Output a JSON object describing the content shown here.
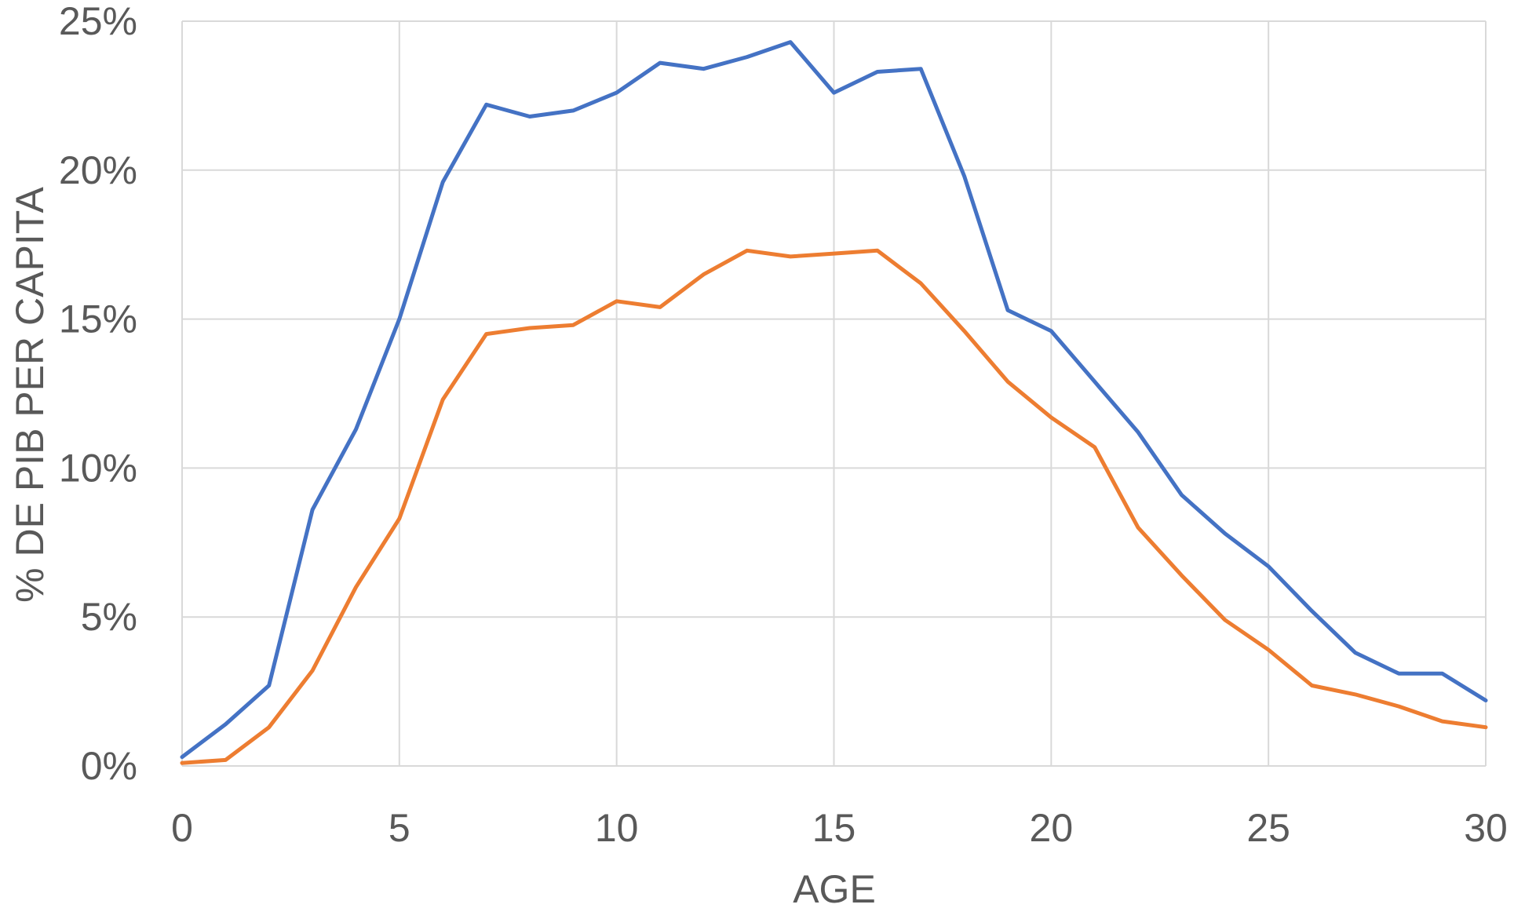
{
  "chart_data": {
    "type": "line",
    "title": "",
    "xlabel": "AGE",
    "ylabel": "% DE PIB PER CAPITA",
    "xlim": [
      0,
      30
    ],
    "ylim": [
      0,
      0.25
    ],
    "x_ticks": [
      0,
      5,
      10,
      15,
      20,
      25,
      30
    ],
    "x_tick_labels": [
      "0",
      "5",
      "10",
      "15",
      "20",
      "25",
      "30"
    ],
    "y_ticks": [
      0,
      0.05,
      0.1,
      0.15,
      0.2,
      0.25
    ],
    "y_tick_labels": [
      "0%",
      "5%",
      "10%",
      "15%",
      "20%",
      "25%"
    ],
    "grid": true,
    "legend": "none",
    "x": [
      0,
      1,
      2,
      3,
      4,
      5,
      6,
      7,
      8,
      9,
      10,
      11,
      12,
      13,
      14,
      15,
      16,
      17,
      18,
      19,
      20,
      21,
      22,
      23,
      24,
      25,
      26,
      27,
      28,
      29,
      30
    ],
    "series": [
      {
        "color": "#4472c4",
        "values": [
          0.003,
          0.014,
          0.027,
          0.086,
          0.113,
          0.15,
          0.196,
          0.222,
          0.218,
          0.22,
          0.226,
          0.236,
          0.234,
          0.238,
          0.243,
          0.226,
          0.233,
          0.234,
          0.198,
          0.153,
          0.146,
          0.129,
          0.112,
          0.091,
          0.078,
          0.067,
          0.052,
          0.038,
          0.031,
          0.031,
          0.022
        ]
      },
      {
        "color": "#ed7d31",
        "values": [
          0.001,
          0.002,
          0.013,
          0.032,
          0.06,
          0.083,
          0.123,
          0.145,
          0.147,
          0.148,
          0.156,
          0.154,
          0.165,
          0.173,
          0.171,
          0.172,
          0.173,
          0.162,
          0.146,
          0.129,
          0.117,
          0.107,
          0.08,
          0.064,
          0.049,
          0.039,
          0.027,
          0.024,
          0.02,
          0.015,
          0.013
        ]
      }
    ]
  }
}
